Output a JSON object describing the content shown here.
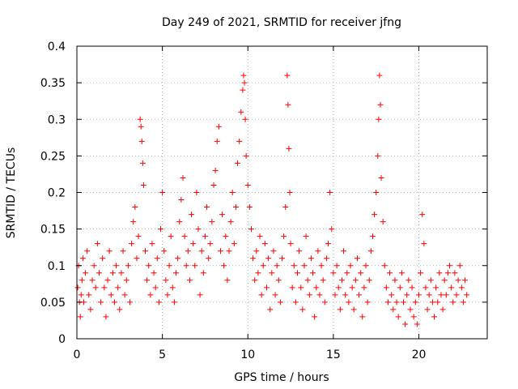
{
  "chart_data": {
    "type": "scatter",
    "title": "Day 249 of 2021, SRMTID for receiver jfng",
    "xlabel": "GPS time / hours",
    "ylabel": "SRMTID / TECUs",
    "xlim": [
      0,
      24
    ],
    "ylim": [
      0,
      0.4
    ],
    "xticks": [
      0,
      5,
      10,
      15,
      20
    ],
    "xtick_labels": [
      "0",
      "5",
      "10",
      "15",
      "20"
    ],
    "yticks": [
      0,
      0.05,
      0.1,
      0.15,
      0.2,
      0.25,
      0.3,
      0.35,
      0.4
    ],
    "ytick_labels": [
      "0",
      "0.05",
      "0.1",
      "0.15",
      "0.2",
      "0.25",
      "0.3",
      "0.35",
      "0.4"
    ],
    "grid": true,
    "marker": "+",
    "color": "#ff0000",
    "series": [
      {
        "name": "SRMTID",
        "points": [
          [
            0.05,
            0.07
          ],
          [
            0.1,
            0.1
          ],
          [
            0.15,
            0.05
          ],
          [
            0.2,
            0.03
          ],
          [
            0.25,
            0.06
          ],
          [
            0.3,
            0.08
          ],
          [
            0.35,
            0.11
          ],
          [
            0.4,
            0.05
          ],
          [
            0.5,
            0.09
          ],
          [
            0.6,
            0.12
          ],
          [
            0.7,
            0.06
          ],
          [
            0.8,
            0.04
          ],
          [
            0.9,
            0.08
          ],
          [
            1.0,
            0.1
          ],
          [
            1.1,
            0.07
          ],
          [
            1.2,
            0.13
          ],
          [
            1.3,
            0.09
          ],
          [
            1.4,
            0.05
          ],
          [
            1.5,
            0.11
          ],
          [
            1.6,
            0.07
          ],
          [
            1.7,
            0.03
          ],
          [
            1.8,
            0.08
          ],
          [
            1.9,
            0.12
          ],
          [
            2.0,
            0.06
          ],
          [
            2.1,
            0.09
          ],
          [
            2.2,
            0.05
          ],
          [
            2.3,
            0.1
          ],
          [
            2.4,
            0.07
          ],
          [
            2.5,
            0.04
          ],
          [
            2.6,
            0.09
          ],
          [
            2.7,
            0.12
          ],
          [
            2.8,
            0.06
          ],
          [
            2.9,
            0.08
          ],
          [
            3.0,
            0.1
          ],
          [
            3.1,
            0.05
          ],
          [
            3.2,
            0.13
          ],
          [
            3.3,
            0.16
          ],
          [
            3.4,
            0.18
          ],
          [
            3.5,
            0.11
          ],
          [
            3.6,
            0.14
          ],
          [
            3.7,
            0.3
          ],
          [
            3.75,
            0.29
          ],
          [
            3.8,
            0.27
          ],
          [
            3.85,
            0.24
          ],
          [
            3.9,
            0.21
          ],
          [
            4.0,
            0.12
          ],
          [
            4.1,
            0.08
          ],
          [
            4.2,
            0.1
          ],
          [
            4.3,
            0.06
          ],
          [
            4.4,
            0.13
          ],
          [
            4.5,
            0.09
          ],
          [
            4.6,
            0.07
          ],
          [
            4.7,
            0.11
          ],
          [
            4.8,
            0.05
          ],
          [
            4.9,
            0.15
          ],
          [
            5.0,
            0.2
          ],
          [
            5.1,
            0.12
          ],
          [
            5.2,
            0.08
          ],
          [
            5.3,
            0.06
          ],
          [
            5.4,
            0.1
          ],
          [
            5.5,
            0.14
          ],
          [
            5.6,
            0.07
          ],
          [
            5.7,
            0.05
          ],
          [
            5.8,
            0.09
          ],
          [
            5.9,
            0.11
          ],
          [
            6.0,
            0.16
          ],
          [
            6.1,
            0.19
          ],
          [
            6.2,
            0.22
          ],
          [
            6.3,
            0.14
          ],
          [
            6.4,
            0.1
          ],
          [
            6.5,
            0.12
          ],
          [
            6.6,
            0.08
          ],
          [
            6.7,
            0.17
          ],
          [
            6.8,
            0.13
          ],
          [
            6.9,
            0.1
          ],
          [
            7.0,
            0.2
          ],
          [
            7.1,
            0.15
          ],
          [
            7.2,
            0.06
          ],
          [
            7.3,
            0.12
          ],
          [
            7.4,
            0.09
          ],
          [
            7.5,
            0.14
          ],
          [
            7.6,
            0.18
          ],
          [
            7.7,
            0.11
          ],
          [
            7.8,
            0.13
          ],
          [
            7.9,
            0.16
          ],
          [
            8.0,
            0.21
          ],
          [
            8.1,
            0.23
          ],
          [
            8.2,
            0.27
          ],
          [
            8.3,
            0.29
          ],
          [
            8.4,
            0.12
          ],
          [
            8.5,
            0.17
          ],
          [
            8.6,
            0.1
          ],
          [
            8.7,
            0.14
          ],
          [
            8.8,
            0.08
          ],
          [
            8.9,
            0.12
          ],
          [
            9.0,
            0.16
          ],
          [
            9.1,
            0.2
          ],
          [
            9.2,
            0.13
          ],
          [
            9.3,
            0.18
          ],
          [
            9.4,
            0.24
          ],
          [
            9.5,
            0.27
          ],
          [
            9.6,
            0.31
          ],
          [
            9.7,
            0.34
          ],
          [
            9.75,
            0.36
          ],
          [
            9.8,
            0.35
          ],
          [
            9.85,
            0.3
          ],
          [
            9.9,
            0.25
          ],
          [
            10.0,
            0.21
          ],
          [
            10.1,
            0.18
          ],
          [
            10.2,
            0.15
          ],
          [
            10.3,
            0.11
          ],
          [
            10.4,
            0.08
          ],
          [
            10.5,
            0.12
          ],
          [
            10.6,
            0.09
          ],
          [
            10.7,
            0.14
          ],
          [
            10.8,
            0.06
          ],
          [
            10.9,
            0.1
          ],
          [
            11.0,
            0.13
          ],
          [
            11.1,
            0.07
          ],
          [
            11.2,
            0.11
          ],
          [
            11.3,
            0.04
          ],
          [
            11.4,
            0.09
          ],
          [
            11.5,
            0.12
          ],
          [
            11.6,
            0.06
          ],
          [
            11.7,
            0.1
          ],
          [
            11.8,
            0.08
          ],
          [
            11.9,
            0.05
          ],
          [
            12.0,
            0.11
          ],
          [
            12.1,
            0.14
          ],
          [
            12.2,
            0.18
          ],
          [
            12.3,
            0.36
          ],
          [
            12.35,
            0.32
          ],
          [
            12.4,
            0.26
          ],
          [
            12.45,
            0.2
          ],
          [
            12.5,
            0.13
          ],
          [
            12.6,
            0.07
          ],
          [
            12.7,
            0.1
          ],
          [
            12.8,
            0.05
          ],
          [
            12.9,
            0.09
          ],
          [
            13.0,
            0.12
          ],
          [
            13.1,
            0.07
          ],
          [
            13.2,
            0.04
          ],
          [
            13.3,
            0.1
          ],
          [
            13.4,
            0.14
          ],
          [
            13.5,
            0.08
          ],
          [
            13.6,
            0.06
          ],
          [
            13.7,
            0.11
          ],
          [
            13.8,
            0.09
          ],
          [
            13.9,
            0.03
          ],
          [
            14.0,
            0.07
          ],
          [
            14.1,
            0.12
          ],
          [
            14.2,
            0.06
          ],
          [
            14.3,
            0.1
          ],
          [
            14.4,
            0.08
          ],
          [
            14.5,
            0.05
          ],
          [
            14.6,
            0.11
          ],
          [
            14.7,
            0.13
          ],
          [
            14.8,
            0.2
          ],
          [
            14.9,
            0.15
          ],
          [
            15.0,
            0.09
          ],
          [
            15.1,
            0.06
          ],
          [
            15.2,
            0.1
          ],
          [
            15.3,
            0.07
          ],
          [
            15.4,
            0.04
          ],
          [
            15.5,
            0.08
          ],
          [
            15.6,
            0.12
          ],
          [
            15.7,
            0.06
          ],
          [
            15.8,
            0.09
          ],
          [
            15.9,
            0.05
          ],
          [
            16.0,
            0.1
          ],
          [
            16.1,
            0.07
          ],
          [
            16.2,
            0.04
          ],
          [
            16.3,
            0.08
          ],
          [
            16.4,
            0.11
          ],
          [
            16.5,
            0.06
          ],
          [
            16.6,
            0.09
          ],
          [
            16.7,
            0.03
          ],
          [
            16.8,
            0.07
          ],
          [
            16.9,
            0.1
          ],
          [
            17.0,
            0.05
          ],
          [
            17.1,
            0.08
          ],
          [
            17.2,
            0.12
          ],
          [
            17.3,
            0.14
          ],
          [
            17.4,
            0.17
          ],
          [
            17.5,
            0.2
          ],
          [
            17.6,
            0.25
          ],
          [
            17.65,
            0.3
          ],
          [
            17.7,
            0.36
          ],
          [
            17.75,
            0.32
          ],
          [
            17.8,
            0.22
          ],
          [
            17.9,
            0.16
          ],
          [
            18.0,
            0.1
          ],
          [
            18.1,
            0.07
          ],
          [
            18.2,
            0.05
          ],
          [
            18.3,
            0.09
          ],
          [
            18.4,
            0.06
          ],
          [
            18.5,
            0.04
          ],
          [
            18.6,
            0.08
          ],
          [
            18.7,
            0.05
          ],
          [
            18.8,
            0.03
          ],
          [
            18.9,
            0.07
          ],
          [
            19.0,
            0.09
          ],
          [
            19.1,
            0.05
          ],
          [
            19.2,
            0.02
          ],
          [
            19.3,
            0.06
          ],
          [
            19.4,
            0.08
          ],
          [
            19.5,
            0.04
          ],
          [
            19.6,
            0.07
          ],
          [
            19.7,
            0.03
          ],
          [
            19.8,
            0.05
          ],
          [
            19.9,
            0.02
          ],
          [
            20.0,
            0.06
          ],
          [
            20.1,
            0.09
          ],
          [
            20.2,
            0.17
          ],
          [
            20.3,
            0.13
          ],
          [
            20.4,
            0.07
          ],
          [
            20.5,
            0.04
          ],
          [
            20.6,
            0.06
          ],
          [
            20.7,
            0.08
          ],
          [
            20.8,
            0.05
          ],
          [
            20.9,
            0.03
          ],
          [
            21.0,
            0.07
          ],
          [
            21.1,
            0.05
          ],
          [
            21.2,
            0.09
          ],
          [
            21.3,
            0.06
          ],
          [
            21.4,
            0.04
          ],
          [
            21.5,
            0.08
          ],
          [
            21.6,
            0.06
          ],
          [
            21.7,
            0.09
          ],
          [
            21.8,
            0.1
          ],
          [
            21.9,
            0.07
          ],
          [
            22.0,
            0.05
          ],
          [
            22.1,
            0.09
          ],
          [
            22.2,
            0.06
          ],
          [
            22.3,
            0.08
          ],
          [
            22.4,
            0.1
          ],
          [
            22.5,
            0.07
          ],
          [
            22.6,
            0.05
          ],
          [
            22.7,
            0.08
          ],
          [
            22.8,
            0.06
          ]
        ]
      }
    ]
  }
}
